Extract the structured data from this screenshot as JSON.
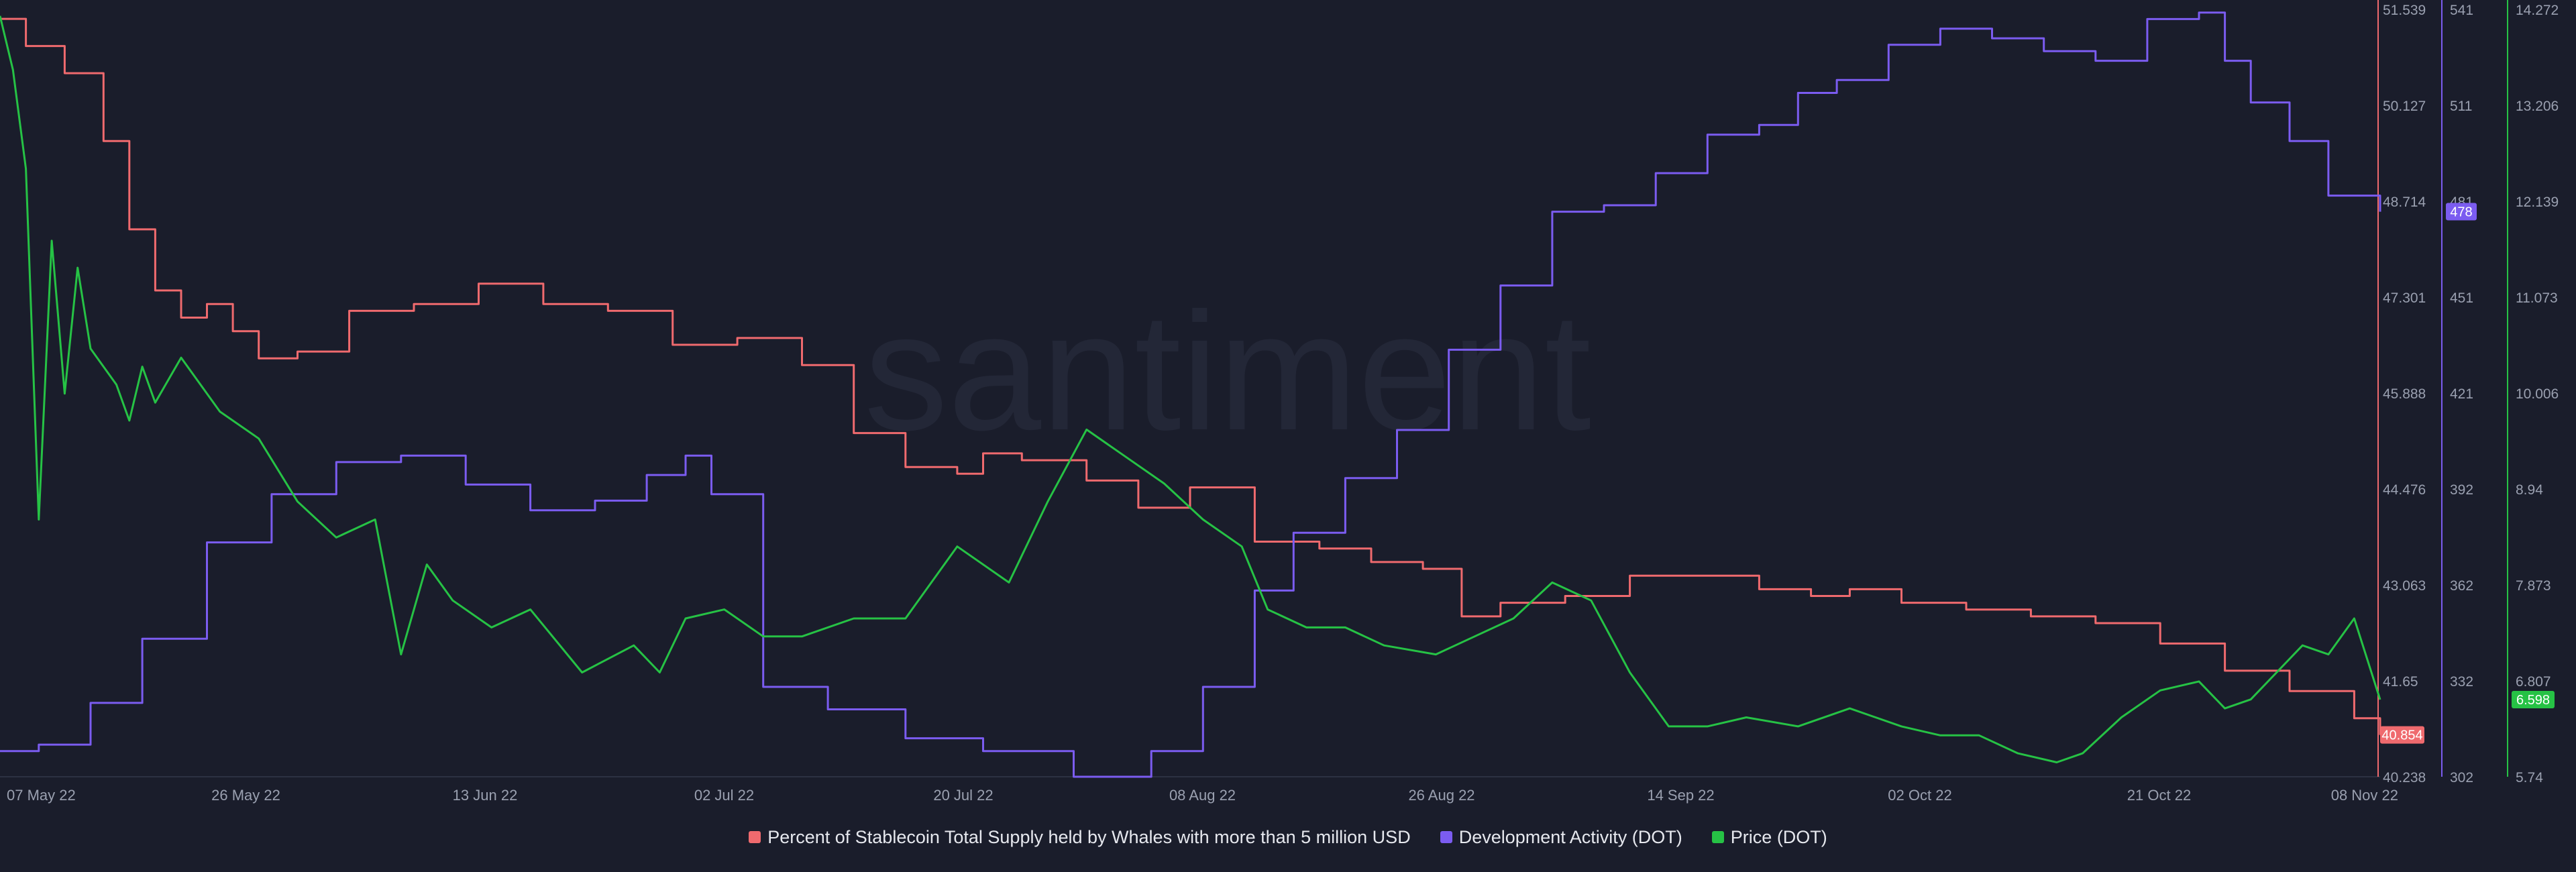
{
  "watermark": "santiment",
  "colors": {
    "background": "#1a1d2b",
    "whales": "#ef6a6e",
    "dev": "#7b5cf0",
    "price": "#26c245"
  },
  "chart_data": {
    "type": "line",
    "x_tick_labels": [
      "07 May 22",
      "26 May 22",
      "13 Jun 22",
      "02 Jul 22",
      "20 Jul 22",
      "08 Aug 22",
      "26 Aug 22",
      "14 Sep 22",
      "02 Oct 22",
      "21 Oct 22",
      "08 Nov 22"
    ],
    "axes": {
      "whales": {
        "ticks": [
          "51.539",
          "50.127",
          "48.714",
          "47.301",
          "45.888",
          "44.476",
          "43.063",
          "41.65",
          "40.238"
        ],
        "range": [
          40.238,
          51.539
        ],
        "last_value": "40.854"
      },
      "dev": {
        "ticks": [
          "541",
          "511",
          "481",
          "451",
          "421",
          "392",
          "362",
          "332",
          "302"
        ],
        "range": [
          302,
          541
        ],
        "last_value": "478"
      },
      "price": {
        "ticks": [
          "14.272",
          "13.206",
          "12.139",
          "11.073",
          "10.006",
          "8.94",
          "7.873",
          "6.807",
          "5.74"
        ],
        "range": [
          5.74,
          14.272
        ],
        "last_value": "6.598"
      }
    },
    "series": [
      {
        "key": "whales",
        "name": "Percent of Stablecoin Total Supply held by Whales with more than 5 million USD",
        "color": "#ef6a6e",
        "step": true,
        "x": [
          0,
          2,
          5,
          8,
          10,
          12,
          14,
          16,
          18,
          20,
          23,
          27,
          32,
          37,
          42,
          47,
          52,
          57,
          62,
          66,
          70,
          74,
          76,
          79,
          84,
          88,
          92,
          97,
          102,
          106,
          110,
          113,
          116,
          121,
          126,
          131,
          136,
          140,
          143,
          147,
          152,
          157,
          162,
          167,
          172,
          177,
          182,
          184
        ],
        "values": [
          51.4,
          51.0,
          50.6,
          49.6,
          48.3,
          47.4,
          47.0,
          47.2,
          46.8,
          46.4,
          46.5,
          47.1,
          47.2,
          47.5,
          47.2,
          47.1,
          46.6,
          46.7,
          46.3,
          45.3,
          44.8,
          44.7,
          45.0,
          44.9,
          44.6,
          44.2,
          44.5,
          43.7,
          43.6,
          43.4,
          43.3,
          42.6,
          42.8,
          42.9,
          43.2,
          43.2,
          43.0,
          42.9,
          43.0,
          42.8,
          42.7,
          42.6,
          42.5,
          42.2,
          41.8,
          41.5,
          41.1,
          40.854
        ]
      },
      {
        "key": "dev",
        "name": "Development Activity (DOT)",
        "color": "#7b5cf0",
        "step": true,
        "x": [
          0,
          3,
          7,
          11,
          16,
          21,
          26,
          31,
          36,
          41,
          46,
          50,
          53,
          55,
          59,
          64,
          70,
          76,
          83,
          89,
          93,
          97,
          100,
          104,
          108,
          112,
          116,
          120,
          124,
          128,
          132,
          136,
          139,
          142,
          146,
          150,
          154,
          158,
          162,
          166,
          170,
          172,
          174,
          177,
          180,
          184
        ],
        "values": [
          310,
          312,
          325,
          345,
          375,
          390,
          400,
          402,
          393,
          385,
          388,
          396,
          402,
          390,
          330,
          323,
          314,
          310,
          302,
          310,
          330,
          360,
          378,
          395,
          410,
          435,
          455,
          478,
          480,
          490,
          502,
          505,
          515,
          519,
          530,
          535,
          532,
          528,
          525,
          538,
          540,
          525,
          512,
          500,
          483,
          478
        ]
      },
      {
        "key": "price",
        "name": "Price (DOT)",
        "color": "#26c245",
        "step": false,
        "x": [
          0,
          1,
          2,
          3,
          4,
          5,
          6,
          7,
          8,
          9,
          10,
          11,
          12,
          14,
          17,
          20,
          23,
          26,
          29,
          31,
          33,
          35,
          38,
          41,
          45,
          49,
          51,
          53,
          56,
          59,
          62,
          66,
          70,
          74,
          78,
          81,
          84,
          87,
          90,
          93,
          96,
          98,
          101,
          104,
          107,
          111,
          114,
          117,
          120,
          123,
          126,
          129,
          132,
          135,
          139,
          143,
          147,
          150,
          153,
          156,
          159,
          161,
          164,
          167,
          170,
          172,
          174,
          176,
          178,
          180,
          182,
          184
        ],
        "values": [
          14.2,
          13.6,
          12.5,
          8.6,
          11.7,
          10.0,
          11.4,
          10.5,
          10.3,
          10.1,
          9.7,
          10.3,
          9.9,
          10.4,
          9.8,
          9.5,
          8.8,
          8.4,
          8.6,
          7.1,
          8.1,
          7.7,
          7.4,
          7.6,
          6.9,
          7.2,
          6.9,
          7.5,
          7.6,
          7.3,
          7.3,
          7.5,
          7.5,
          8.3,
          7.9,
          8.8,
          9.6,
          9.3,
          9.0,
          8.6,
          8.3,
          7.6,
          7.4,
          7.4,
          7.2,
          7.1,
          7.3,
          7.5,
          7.9,
          7.7,
          6.9,
          6.3,
          6.3,
          6.4,
          6.3,
          6.5,
          6.3,
          6.2,
          6.2,
          6.0,
          5.9,
          6.0,
          6.4,
          6.7,
          6.8,
          6.5,
          6.6,
          6.9,
          7.2,
          7.1,
          7.5,
          6.598
        ]
      }
    ]
  }
}
